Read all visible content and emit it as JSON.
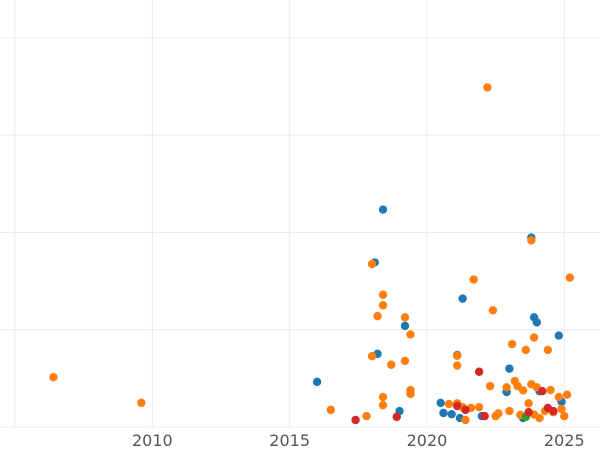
{
  "chart_data": {
    "type": "scatter",
    "title": "",
    "xlabel": "",
    "ylabel": "",
    "xlim": [
      2005,
      2026.3
    ],
    "ylim": [
      0,
      100
    ],
    "x_ticks": [
      2010,
      2015,
      2020,
      2025
    ],
    "x_tick_labels": [
      "2010",
      "2015",
      "2020",
      "2025"
    ],
    "y_gridlines": [
      0,
      25,
      50,
      75,
      100
    ],
    "grid": true,
    "legend": "none",
    "series": [
      {
        "color": "#1f77b4",
        "points": [
          [
            2016.0,
            11.6
          ],
          [
            2018.1,
            42.3
          ],
          [
            2018.2,
            18.8
          ],
          [
            2018.4,
            55.9
          ],
          [
            2019.0,
            4.1
          ],
          [
            2019.2,
            26.0
          ],
          [
            2020.5,
            6.2
          ],
          [
            2020.6,
            3.6
          ],
          [
            2020.9,
            3.3
          ],
          [
            2021.1,
            18.5
          ],
          [
            2021.2,
            2.3
          ],
          [
            2021.3,
            33.0
          ],
          [
            2022.0,
            2.8
          ],
          [
            2022.9,
            9.0
          ],
          [
            2023.0,
            15.0
          ],
          [
            2023.5,
            2.3
          ],
          [
            2023.8,
            48.7
          ],
          [
            2023.9,
            28.2
          ],
          [
            2024.0,
            26.9
          ],
          [
            2024.1,
            9.2
          ],
          [
            2024.8,
            23.5
          ],
          [
            2024.9,
            6.5
          ]
        ]
      },
      {
        "color": "#ff7f0e",
        "points": [
          [
            2006.4,
            12.8
          ],
          [
            2009.6,
            6.2
          ],
          [
            2016.5,
            4.4
          ],
          [
            2017.8,
            2.8
          ],
          [
            2018.0,
            18.2
          ],
          [
            2018.0,
            41.9
          ],
          [
            2018.2,
            28.5
          ],
          [
            2018.4,
            31.3
          ],
          [
            2018.4,
            34.0
          ],
          [
            2018.4,
            7.7
          ],
          [
            2018.4,
            5.6
          ],
          [
            2018.7,
            16.0
          ],
          [
            2019.2,
            17.0
          ],
          [
            2019.2,
            28.2
          ],
          [
            2019.4,
            23.8
          ],
          [
            2019.4,
            9.5
          ],
          [
            2019.4,
            8.5
          ],
          [
            2020.8,
            5.9
          ],
          [
            2021.1,
            18.3
          ],
          [
            2021.1,
            15.8
          ],
          [
            2021.1,
            6.1
          ],
          [
            2021.3,
            5.1
          ],
          [
            2021.4,
            1.8
          ],
          [
            2021.6,
            4.9
          ],
          [
            2021.7,
            37.9
          ],
          [
            2021.9,
            5.1
          ],
          [
            2022.2,
            87.3
          ],
          [
            2022.3,
            10.5
          ],
          [
            2022.4,
            30.0
          ],
          [
            2022.5,
            2.8
          ],
          [
            2022.6,
            3.5
          ],
          [
            2022.9,
            10.2
          ],
          [
            2023.0,
            4.1
          ],
          [
            2023.1,
            21.3
          ],
          [
            2023.2,
            11.8
          ],
          [
            2023.3,
            10.5
          ],
          [
            2023.4,
            3.1
          ],
          [
            2023.5,
            9.4
          ],
          [
            2023.6,
            19.8
          ],
          [
            2023.7,
            6.1
          ],
          [
            2023.8,
            48.0
          ],
          [
            2023.8,
            11.0
          ],
          [
            2023.9,
            23.0
          ],
          [
            2023.9,
            3.2
          ],
          [
            2024.0,
            10.2
          ],
          [
            2024.1,
            2.3
          ],
          [
            2024.3,
            4.1
          ],
          [
            2024.4,
            19.8
          ],
          [
            2024.5,
            9.5
          ],
          [
            2024.6,
            3.8
          ],
          [
            2024.8,
            7.7
          ],
          [
            2024.9,
            4.6
          ],
          [
            2025.0,
            2.8
          ],
          [
            2025.1,
            8.3
          ],
          [
            2025.2,
            38.4
          ]
        ]
      },
      {
        "color": "#2ca02c",
        "points": [
          [
            2023.6,
            2.6
          ]
        ]
      },
      {
        "color": "#d62728",
        "points": [
          [
            2017.4,
            1.8
          ],
          [
            2018.9,
            2.6
          ],
          [
            2021.1,
            5.4
          ],
          [
            2021.4,
            4.4
          ],
          [
            2021.9,
            14.2
          ],
          [
            2022.1,
            2.8
          ],
          [
            2023.7,
            3.8
          ],
          [
            2024.2,
            9.2
          ],
          [
            2024.4,
            4.9
          ],
          [
            2024.6,
            4.1
          ]
        ]
      }
    ]
  }
}
